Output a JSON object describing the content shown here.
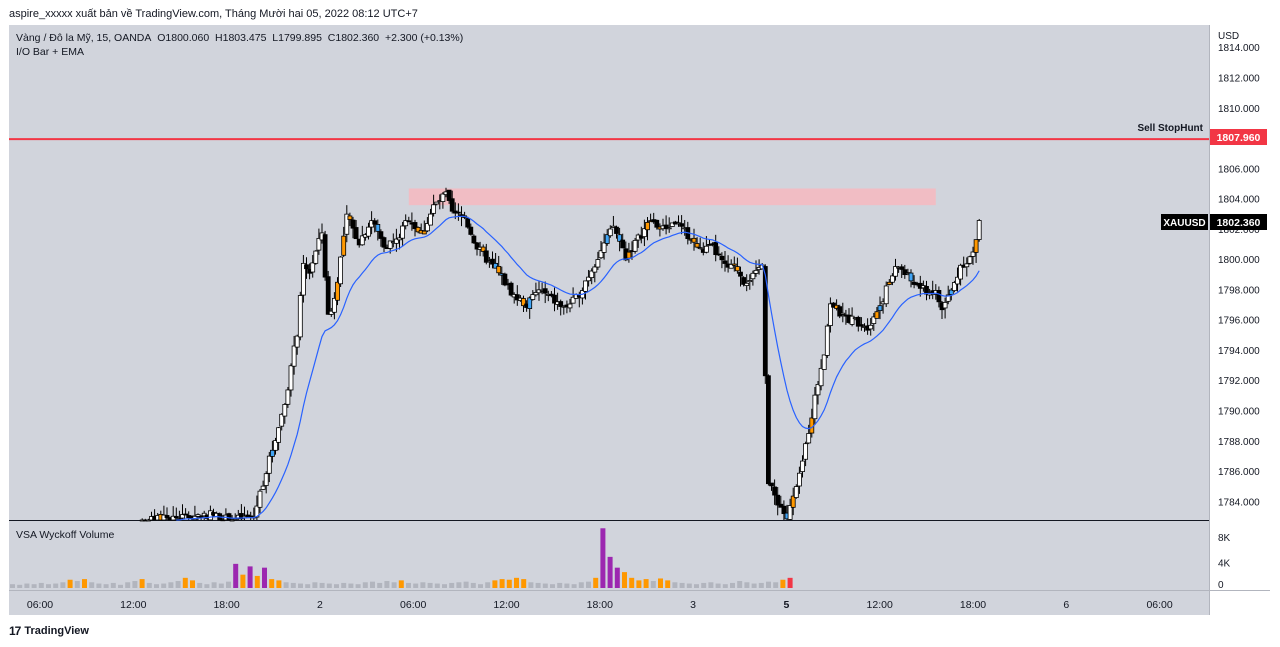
{
  "header": {
    "publish_text": "aspire_xxxxx xuất bản về TradingView.com, Tháng Mười hai 05, 2022 08:12 UTC+7"
  },
  "legend": {
    "symbol_line": "Vàng / Đô la Mỹ, 15, OANDA",
    "open": "O1800.060",
    "high": "H1803.475",
    "low": "L1799.895",
    "close": "C1802.360",
    "change": "+2.300 (+0.13%)",
    "indicator": "I/O Bar + EMA"
  },
  "volume_panel": {
    "title": "VSA Wyckoff Volume",
    "ticks": [
      "8K",
      "4K",
      "0"
    ]
  },
  "price_axis": {
    "currency": "USD",
    "ticks": [
      "1814.000",
      "1812.000",
      "1810.000",
      "1808.000",
      "1806.000",
      "1804.000",
      "1802.000",
      "1800.000",
      "1798.000",
      "1796.000",
      "1794.000",
      "1792.000",
      "1790.000",
      "1788.000",
      "1786.000",
      "1784.000"
    ]
  },
  "time_axis": {
    "ticks": [
      "06:00",
      "12:00",
      "18:00",
      "2",
      "06:00",
      "12:00",
      "18:00",
      "3",
      "5",
      "12:00",
      "18:00",
      "6",
      "06:00"
    ],
    "bold_index": 8
  },
  "annotations": {
    "sell_line_label": "Sell StopHunt",
    "sell_line_price": "1807.960",
    "symbol_tag": "XAUUSD",
    "last_price": "1802.360"
  },
  "footer": {
    "brand": "TradingView",
    "mark": "17"
  },
  "colors": {
    "background": "#d1d4dc",
    "candle_up_body": "#ffffff",
    "candle_down_body": "#000000",
    "candle_io": "#ff9800",
    "candle_inside": "#42a5f5",
    "ema": "#2962ff",
    "sell_line": "#f23645",
    "supply_zone": "#f7b8bf",
    "volume_normal": "#b2b5be",
    "volume_high": "#ff9800",
    "volume_climax": "#9c27b0",
    "volume_last": "#f23645"
  },
  "chart_data": {
    "type": "candlestick",
    "symbol": "XAUUSD",
    "interval": "15",
    "ylim": [
      1782.8,
      1815.5
    ],
    "sell_stophunt_level": 1807.96,
    "supply_zone": [
      1803.6,
      1804.7
    ],
    "last_close": 1802.36,
    "price_path": [
      [
        0,
        1782.6
      ],
      [
        40,
        1782.6
      ],
      [
        50,
        1782.9
      ],
      [
        60,
        1783.1
      ],
      [
        64,
        1783.2
      ],
      [
        70,
        1782.8
      ],
      [
        78,
        1783.0
      ],
      [
        80,
        1784.6
      ],
      [
        84,
        1787.5
      ],
      [
        88,
        1790.5
      ],
      [
        92,
        1795.2
      ],
      [
        94,
        1799.5
      ],
      [
        96,
        1799.2
      ],
      [
        100,
        1801.8
      ],
      [
        102,
        1796.2
      ],
      [
        104,
        1797.4
      ],
      [
        108,
        1802.8
      ],
      [
        112,
        1801.2
      ],
      [
        116,
        1802.6
      ],
      [
        120,
        1801.0
      ],
      [
        124,
        1801.2
      ],
      [
        128,
        1802.8
      ],
      [
        132,
        1801.6
      ],
      [
        136,
        1803.5
      ],
      [
        140,
        1804.3
      ],
      [
        142,
        1803.0
      ],
      [
        146,
        1802.8
      ],
      [
        150,
        1800.8
      ],
      [
        154,
        1799.8
      ],
      [
        158,
        1798.8
      ],
      [
        162,
        1797.6
      ],
      [
        166,
        1797.0
      ],
      [
        170,
        1798.0
      ],
      [
        174,
        1797.4
      ],
      [
        178,
        1796.8
      ],
      [
        182,
        1797.4
      ],
      [
        186,
        1799.0
      ],
      [
        190,
        1800.6
      ],
      [
        194,
        1802.2
      ],
      [
        198,
        1800.2
      ],
      [
        202,
        1801.4
      ],
      [
        206,
        1802.6
      ],
      [
        210,
        1802.0
      ],
      [
        214,
        1802.5
      ],
      [
        218,
        1801.6
      ],
      [
        222,
        1800.6
      ],
      [
        226,
        1800.8
      ],
      [
        230,
        1799.5
      ],
      [
        234,
        1799.4
      ],
      [
        236,
        1798.6
      ],
      [
        240,
        1799.0
      ],
      [
        242,
        1799.9
      ],
      [
        244,
        1785.2
      ],
      [
        246,
        1784.4
      ],
      [
        250,
        1782.9
      ],
      [
        254,
        1785.6
      ],
      [
        258,
        1789.8
      ],
      [
        262,
        1794.0
      ],
      [
        264,
        1797.2
      ],
      [
        268,
        1796.2
      ],
      [
        272,
        1796.0
      ],
      [
        276,
        1795.6
      ],
      [
        280,
        1797.0
      ],
      [
        284,
        1799.0
      ],
      [
        286,
        1799.6
      ],
      [
        290,
        1798.6
      ],
      [
        294,
        1798.0
      ],
      [
        298,
        1797.8
      ],
      [
        300,
        1796.7
      ],
      [
        304,
        1798.4
      ],
      [
        306,
        1799.6
      ],
      [
        310,
        1800.3
      ],
      [
        312,
        1802.4
      ]
    ],
    "volume_k": [
      0.6,
      0.5,
      0.7,
      0.6,
      0.8,
      0.6,
      0.7,
      0.9,
      1.3,
      1.1,
      1.4,
      0.9,
      0.7,
      0.6,
      0.8,
      0.5,
      0.9,
      1.1,
      1.4,
      0.8,
      0.6,
      0.7,
      0.9,
      1.1,
      1.6,
      1.2,
      0.8,
      0.6,
      0.9,
      0.7,
      1.0,
      3.8,
      2.1,
      3.4,
      1.9,
      3.2,
      1.4,
      1.2,
      0.9,
      0.8,
      0.7,
      0.6,
      0.9,
      0.8,
      0.7,
      0.6,
      0.8,
      0.7,
      0.6,
      0.9,
      1.0,
      0.8,
      1.1,
      0.9,
      1.2,
      0.8,
      0.7,
      0.9,
      0.8,
      0.7,
      0.6,
      0.8,
      0.9,
      1.0,
      0.8,
      0.6,
      0.9,
      1.2,
      1.4,
      1.3,
      1.6,
      1.4,
      0.9,
      0.8,
      0.7,
      0.6,
      0.8,
      0.7,
      0.6,
      0.9,
      1.0,
      1.6,
      9.4,
      4.9,
      3.2,
      2.5,
      1.6,
      1.2,
      1.4,
      1.1,
      1.5,
      1.2,
      0.9,
      0.8,
      0.7,
      0.6,
      0.8,
      0.9,
      0.7,
      0.6,
      0.8,
      1.1,
      0.9,
      0.7,
      0.8,
      1.0,
      0.9,
      1.3,
      1.6
    ],
    "notes": "price_path gives approximate close values per candle index; volume in thousands"
  }
}
